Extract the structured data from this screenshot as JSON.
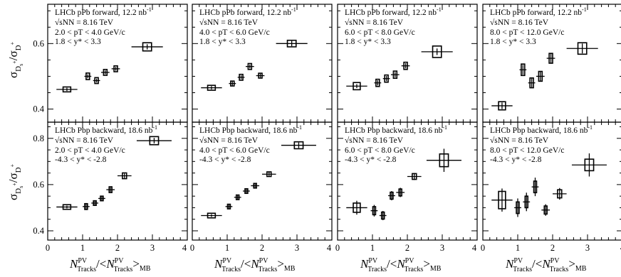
{
  "y_axis_label": {
    "main": "σ",
    "sub1": "D",
    "sub1sub": "s",
    "sub1sup": "+",
    "sep": "/σ",
    "sub2": "D",
    "sub2sup": "+"
  },
  "x_axis_label": {
    "n1": "N",
    "sup1": "PV",
    "sub1": "Tracks",
    "sep": "/<",
    "n2": "N",
    "sup2": "PV",
    "sub2": "Tracks",
    "close": ">",
    "sub3": "MB"
  },
  "chart_data": [
    {
      "type": "scatter",
      "row": "forward",
      "annotation": {
        "collab": "LHCb ",
        "system": "pPb forward, 12.2 nb",
        "lumi_sup": "-1",
        "energy": "√sNN = 8.16 TeV",
        "pt_range": "2.0 < pT < 4.0 GeV/c",
        "rapidity": "1.8 < y* < 3.3"
      },
      "xlim": [
        0,
        4
      ],
      "ylim": [
        0.36,
        0.72
      ],
      "xticks": [
        "0",
        "1",
        "2",
        "3",
        "4"
      ],
      "yticks": [
        "0.4",
        "0.6"
      ],
      "points": [
        {
          "x": 0.55,
          "xerr": 0.3,
          "y": 0.46,
          "stat": 0.005,
          "syst_w": 0.22,
          "syst_h": 0.015
        },
        {
          "x": 1.15,
          "xerr": 0.1,
          "y": 0.5,
          "stat": 0.006,
          "syst_w": 0.1,
          "syst_h": 0.02
        },
        {
          "x": 1.4,
          "xerr": 0.1,
          "y": 0.487,
          "stat": 0.006,
          "syst_w": 0.1,
          "syst_h": 0.018
        },
        {
          "x": 1.65,
          "xerr": 0.12,
          "y": 0.512,
          "stat": 0.006,
          "syst_w": 0.1,
          "syst_h": 0.018
        },
        {
          "x": 1.95,
          "xerr": 0.12,
          "y": 0.523,
          "stat": 0.006,
          "syst_w": 0.1,
          "syst_h": 0.018
        },
        {
          "x": 2.85,
          "xerr": 0.45,
          "y": 0.59,
          "stat": 0.008,
          "syst_w": 0.25,
          "syst_h": 0.025
        }
      ]
    },
    {
      "type": "scatter",
      "row": "forward",
      "annotation": {
        "collab": "LHCb ",
        "system": "pPb forward, 12.2 nb",
        "lumi_sup": "-1",
        "energy": "√sNN = 8.16 TeV",
        "pt_range": "4.0 < pT < 6.0 GeV/c",
        "rapidity": "1.8 < y* < 3.3"
      },
      "xlim": [
        0,
        4
      ],
      "ylim": [
        0.36,
        0.72
      ],
      "xticks": [
        "0",
        "1",
        "2",
        "3",
        "4"
      ],
      "yticks": [
        "0.4",
        "0.6"
      ],
      "points": [
        {
          "x": 0.55,
          "xerr": 0.3,
          "y": 0.465,
          "stat": 0.005,
          "syst_w": 0.22,
          "syst_h": 0.015
        },
        {
          "x": 1.15,
          "xerr": 0.1,
          "y": 0.478,
          "stat": 0.006,
          "syst_w": 0.1,
          "syst_h": 0.015
        },
        {
          "x": 1.4,
          "xerr": 0.1,
          "y": 0.497,
          "stat": 0.006,
          "syst_w": 0.1,
          "syst_h": 0.018
        },
        {
          "x": 1.65,
          "xerr": 0.12,
          "y": 0.53,
          "stat": 0.006,
          "syst_w": 0.1,
          "syst_h": 0.018
        },
        {
          "x": 1.95,
          "xerr": 0.12,
          "y": 0.502,
          "stat": 0.006,
          "syst_w": 0.1,
          "syst_h": 0.015
        },
        {
          "x": 2.85,
          "xerr": 0.45,
          "y": 0.6,
          "stat": 0.008,
          "syst_w": 0.25,
          "syst_h": 0.02
        }
      ]
    },
    {
      "type": "scatter",
      "row": "forward",
      "annotation": {
        "collab": "LHCb ",
        "system": "pPb forward, 12.2 nb",
        "lumi_sup": "-1",
        "energy": "√sNN = 8.16 TeV",
        "pt_range": "6.0 < pT < 8.0 GeV/c",
        "rapidity": "1.8 < y* < 3.3"
      },
      "xlim": [
        0,
        4
      ],
      "ylim": [
        0.36,
        0.72
      ],
      "xticks": [
        "0",
        "1",
        "2",
        "3",
        "4"
      ],
      "yticks": [
        "0.4",
        "0.6"
      ],
      "points": [
        {
          "x": 0.55,
          "xerr": 0.3,
          "y": 0.47,
          "stat": 0.006,
          "syst_w": 0.2,
          "syst_h": 0.022
        },
        {
          "x": 1.15,
          "xerr": 0.1,
          "y": 0.48,
          "stat": 0.008,
          "syst_w": 0.1,
          "syst_h": 0.022
        },
        {
          "x": 1.4,
          "xerr": 0.1,
          "y": 0.493,
          "stat": 0.008,
          "syst_w": 0.1,
          "syst_h": 0.022
        },
        {
          "x": 1.65,
          "xerr": 0.12,
          "y": 0.505,
          "stat": 0.008,
          "syst_w": 0.1,
          "syst_h": 0.022
        },
        {
          "x": 1.95,
          "xerr": 0.12,
          "y": 0.532,
          "stat": 0.008,
          "syst_w": 0.1,
          "syst_h": 0.022
        },
        {
          "x": 2.85,
          "xerr": 0.45,
          "y": 0.575,
          "stat": 0.01,
          "syst_w": 0.25,
          "syst_h": 0.035
        }
      ]
    },
    {
      "type": "scatter",
      "row": "forward",
      "annotation": {
        "collab": "LHCb ",
        "system": "pPb forward, 12.2 nb",
        "lumi_sup": "-1",
        "energy": "√sNN = 8.16 TeV",
        "pt_range": "8.0 < pT < 12.0 GeV/c",
        "rapidity": "1.8 < y* < 3.3"
      },
      "xlim": [
        0,
        4
      ],
      "ylim": [
        0.36,
        0.72
      ],
      "xticks": [
        "0",
        "1",
        "2",
        "3",
        "4"
      ],
      "yticks": [
        "0.4",
        "0.6"
      ],
      "points": [
        {
          "x": 0.55,
          "xerr": 0.3,
          "y": 0.41,
          "stat": 0.01,
          "syst_w": 0.2,
          "syst_h": 0.025
        },
        {
          "x": 1.15,
          "xerr": 0.1,
          "y": 0.52,
          "stat": 0.015,
          "syst_w": 0.1,
          "syst_h": 0.035
        },
        {
          "x": 1.4,
          "xerr": 0.1,
          "y": 0.48,
          "stat": 0.015,
          "syst_w": 0.1,
          "syst_h": 0.03
        },
        {
          "x": 1.65,
          "xerr": 0.12,
          "y": 0.5,
          "stat": 0.015,
          "syst_w": 0.1,
          "syst_h": 0.03
        },
        {
          "x": 1.95,
          "xerr": 0.12,
          "y": 0.555,
          "stat": 0.015,
          "syst_w": 0.1,
          "syst_h": 0.03
        },
        {
          "x": 2.85,
          "xerr": 0.45,
          "y": 0.585,
          "stat": 0.015,
          "syst_w": 0.25,
          "syst_h": 0.035
        }
      ]
    },
    {
      "type": "scatter",
      "row": "backward",
      "annotation": {
        "collab": "LHCb ",
        "system": "Pbp backward, 18.6 nb",
        "lumi_sup": "-1",
        "energy": "√sNN = 8.16 TeV",
        "pt_range": "2.0 < pT < 4.0 GeV/c",
        "rapidity": "-4.3 < y* < -2.8"
      },
      "xlim": [
        0,
        4
      ],
      "ylim": [
        0.36,
        0.87
      ],
      "xticks": [
        "0",
        "1",
        "2",
        "3",
        "4"
      ],
      "yticks": [
        "0.4",
        "0.6",
        "0.8"
      ],
      "points": [
        {
          "x": 0.55,
          "xerr": 0.3,
          "y": 0.503,
          "stat": 0.006,
          "syst_w": 0.22,
          "syst_h": 0.02
        },
        {
          "x": 1.1,
          "xerr": 0.1,
          "y": 0.505,
          "stat": 0.015,
          "syst_w": 0.08,
          "syst_h": 0.025
        },
        {
          "x": 1.35,
          "xerr": 0.1,
          "y": 0.52,
          "stat": 0.01,
          "syst_w": 0.08,
          "syst_h": 0.02
        },
        {
          "x": 1.55,
          "xerr": 0.1,
          "y": 0.54,
          "stat": 0.01,
          "syst_w": 0.08,
          "syst_h": 0.02
        },
        {
          "x": 1.8,
          "xerr": 0.12,
          "y": 0.578,
          "stat": 0.01,
          "syst_w": 0.08,
          "syst_h": 0.025
        },
        {
          "x": 2.2,
          "xerr": 0.2,
          "y": 0.638,
          "stat": 0.01,
          "syst_w": 0.12,
          "syst_h": 0.025
        },
        {
          "x": 3.05,
          "xerr": 0.5,
          "y": 0.79,
          "stat": 0.012,
          "syst_w": 0.25,
          "syst_h": 0.035
        }
      ]
    },
    {
      "type": "scatter",
      "row": "backward",
      "annotation": {
        "collab": "LHCb ",
        "system": "Pbp backward, 18.6 nb",
        "lumi_sup": "-1",
        "energy": "√sNN = 8.16 TeV",
        "pt_range": "4.0 < pT < 6.0 GeV/c",
        "rapidity": "-4.3 < y* < -2.8"
      },
      "xlim": [
        0,
        4
      ],
      "ylim": [
        0.36,
        0.87
      ],
      "xticks": [
        "0",
        "1",
        "2",
        "3",
        "4"
      ],
      "yticks": [
        "0.4",
        "0.6",
        "0.8"
      ],
      "points": [
        {
          "x": 0.55,
          "xerr": 0.3,
          "y": 0.466,
          "stat": 0.006,
          "syst_w": 0.22,
          "syst_h": 0.02
        },
        {
          "x": 1.05,
          "xerr": 0.1,
          "y": 0.505,
          "stat": 0.01,
          "syst_w": 0.08,
          "syst_h": 0.02
        },
        {
          "x": 1.3,
          "xerr": 0.1,
          "y": 0.545,
          "stat": 0.01,
          "syst_w": 0.08,
          "syst_h": 0.02
        },
        {
          "x": 1.55,
          "xerr": 0.1,
          "y": 0.572,
          "stat": 0.01,
          "syst_w": 0.08,
          "syst_h": 0.02
        },
        {
          "x": 1.8,
          "xerr": 0.12,
          "y": 0.595,
          "stat": 0.01,
          "syst_w": 0.08,
          "syst_h": 0.02
        },
        {
          "x": 2.2,
          "xerr": 0.2,
          "y": 0.645,
          "stat": 0.01,
          "syst_w": 0.12,
          "syst_h": 0.02
        },
        {
          "x": 3.05,
          "xerr": 0.5,
          "y": 0.77,
          "stat": 0.012,
          "syst_w": 0.25,
          "syst_h": 0.03
        }
      ]
    },
    {
      "type": "scatter",
      "row": "backward",
      "annotation": {
        "collab": "LHCb ",
        "system": "Pbp backward, 18.6 nb",
        "lumi_sup": "-1",
        "energy": "√sNN = 8.16 TeV",
        "pt_range": "6.0 < pT < 8.0 GeV/c",
        "rapidity": "-4.3 < y* < -2.8"
      },
      "xlim": [
        0,
        4
      ],
      "ylim": [
        0.36,
        0.87
      ],
      "xticks": [
        "0",
        "1",
        "2",
        "3",
        "4"
      ],
      "yticks": [
        "0.4",
        "0.6",
        "0.8"
      ],
      "points": [
        {
          "x": 0.55,
          "xerr": 0.3,
          "y": 0.5,
          "stat": 0.03,
          "syst_w": 0.2,
          "syst_h": 0.04
        },
        {
          "x": 1.05,
          "xerr": 0.1,
          "y": 0.487,
          "stat": 0.025,
          "syst_w": 0.08,
          "syst_h": 0.035
        },
        {
          "x": 1.3,
          "xerr": 0.1,
          "y": 0.466,
          "stat": 0.02,
          "syst_w": 0.08,
          "syst_h": 0.03
        },
        {
          "x": 1.55,
          "xerr": 0.1,
          "y": 0.552,
          "stat": 0.02,
          "syst_w": 0.08,
          "syst_h": 0.03
        },
        {
          "x": 1.8,
          "xerr": 0.12,
          "y": 0.566,
          "stat": 0.02,
          "syst_w": 0.08,
          "syst_h": 0.03
        },
        {
          "x": 2.2,
          "xerr": 0.2,
          "y": 0.635,
          "stat": 0.015,
          "syst_w": 0.12,
          "syst_h": 0.025
        },
        {
          "x": 3.05,
          "xerr": 0.5,
          "y": 0.705,
          "stat": 0.05,
          "syst_w": 0.25,
          "syst_h": 0.055
        }
      ]
    },
    {
      "type": "scatter",
      "row": "backward",
      "annotation": {
        "collab": "LHCb ",
        "system": "Pbp backward, 18.6 nb",
        "lumi_sup": "-1",
        "energy": "√sNN = 8.16 TeV",
        "pt_range": "8.0 < pT < 12.0 GeV/c",
        "rapidity": "-4.3 < y* < -2.8"
      },
      "xlim": [
        0,
        4
      ],
      "ylim": [
        0.36,
        0.87
      ],
      "xticks": [
        "0",
        "1",
        "2",
        "3",
        "4"
      ],
      "yticks": [
        "0.4",
        "0.6",
        "0.8"
      ],
      "points": [
        {
          "x": 0.55,
          "xerr": 0.3,
          "y": 0.533,
          "stat": 0.05,
          "syst_w": 0.2,
          "syst_h": 0.075
        },
        {
          "x": 1.0,
          "xerr": 0.1,
          "y": 0.5,
          "stat": 0.04,
          "syst_w": 0.08,
          "syst_h": 0.05
        },
        {
          "x": 1.25,
          "xerr": 0.1,
          "y": 0.525,
          "stat": 0.04,
          "syst_w": 0.08,
          "syst_h": 0.05
        },
        {
          "x": 1.5,
          "xerr": 0.1,
          "y": 0.59,
          "stat": 0.04,
          "syst_w": 0.08,
          "syst_h": 0.05
        },
        {
          "x": 1.8,
          "xerr": 0.12,
          "y": 0.49,
          "stat": 0.025,
          "syst_w": 0.08,
          "syst_h": 0.035
        },
        {
          "x": 2.2,
          "xerr": 0.2,
          "y": 0.56,
          "stat": 0.025,
          "syst_w": 0.12,
          "syst_h": 0.035
        },
        {
          "x": 3.05,
          "xerr": 0.5,
          "y": 0.685,
          "stat": 0.05,
          "syst_w": 0.25,
          "syst_h": 0.05
        }
      ]
    }
  ]
}
